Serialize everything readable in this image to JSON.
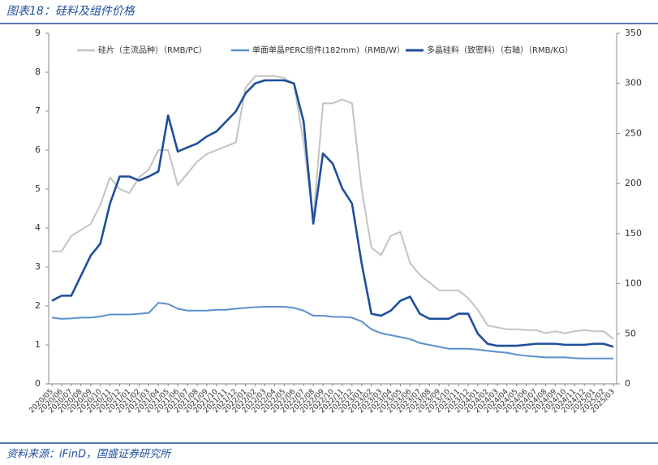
{
  "title": "图表18：硅料及组件价格",
  "source": "资料来源：iFinD，国盛证券研究所",
  "chart_data": {
    "type": "line",
    "categories": [
      "2020/05",
      "2020/06",
      "2020/07",
      "2020/08",
      "2020/09",
      "2020/10",
      "2020/11",
      "2020/12",
      "2021/01",
      "2021/02",
      "2021/03",
      "2021/04",
      "2021/05",
      "2021/06",
      "2021/07",
      "2021/08",
      "2021/09",
      "2021/10",
      "2021/11",
      "2021/12",
      "2022/01",
      "2022/02",
      "2022/03",
      "2022/04",
      "2022/05",
      "2022/06",
      "2022/07",
      "2022/08",
      "2022/09",
      "2022/10",
      "2022/11",
      "2022/12",
      "2023/01",
      "2023/02",
      "2023/03",
      "2023/04",
      "2023/05",
      "2023/06",
      "2023/07",
      "2023/08",
      "2023/09",
      "2023/10",
      "2023/11",
      "2023/12",
      "2024/01",
      "2024/02",
      "2024/03",
      "2024/04",
      "2024/05",
      "2024/06",
      "2024/07",
      "2024/08",
      "2024/09",
      "2024/10",
      "2024/11",
      "2024/12",
      "2025/01",
      "2025/02",
      "2025/03"
    ],
    "series": [
      {
        "name": "硅片（主流品种）（RMB/PC）",
        "color": "#c3c3c3",
        "width": 2,
        "values": [
          3.4,
          3.4,
          3.8,
          3.95,
          4.1,
          4.6,
          5.3,
          5.0,
          4.9,
          5.3,
          5.5,
          6.0,
          6.0,
          5.1,
          5.4,
          5.7,
          5.9,
          6.0,
          6.1,
          6.2,
          7.6,
          7.9,
          7.9,
          7.9,
          7.85,
          7.7,
          6.2,
          4.2,
          7.2,
          7.2,
          7.3,
          7.2,
          5.0,
          3.5,
          3.3,
          3.8,
          3.9,
          3.1,
          2.8,
          2.6,
          2.4,
          2.4,
          2.4,
          2.2,
          1.9,
          1.5,
          1.45,
          1.4,
          1.4,
          1.38,
          1.38,
          1.3,
          1.35,
          1.3,
          1.35,
          1.38,
          1.35,
          1.35,
          1.15
        ]
      },
      {
        "name": "单面单晶PERC组件(182mm)（RMB/W）",
        "color": "#5b8fd0",
        "width": 2,
        "values": [
          1.7,
          1.67,
          1.68,
          1.7,
          1.7,
          1.73,
          1.78,
          1.78,
          1.78,
          1.8,
          1.82,
          2.08,
          2.05,
          1.93,
          1.88,
          1.88,
          1.88,
          1.9,
          1.9,
          1.93,
          1.95,
          1.97,
          1.98,
          1.98,
          1.98,
          1.95,
          1.88,
          1.75,
          1.75,
          1.72,
          1.72,
          1.7,
          1.6,
          1.4,
          1.3,
          1.25,
          1.2,
          1.15,
          1.05,
          1.0,
          0.95,
          0.9,
          0.9,
          0.9,
          0.88,
          0.85,
          0.82,
          0.8,
          0.75,
          0.72,
          0.7,
          0.68,
          0.68,
          0.68,
          0.66,
          0.65,
          0.65,
          0.65,
          0.65
        ]
      },
      {
        "name": "多晶硅料（致密料）（右轴）（RMB/KG）",
        "color": "#1f4e9c",
        "width": 2.6,
        "axis": "y2",
        "values": [
          83,
          88,
          88,
          108,
          128,
          140,
          180,
          207,
          207,
          203,
          207,
          212,
          268,
          232,
          236,
          240,
          247,
          252,
          262,
          272,
          290,
          300,
          303,
          303,
          303,
          300,
          262,
          160,
          230,
          220,
          195,
          180,
          120,
          70,
          68,
          73,
          83,
          87,
          70,
          65,
          65,
          65,
          70,
          70,
          50,
          40,
          38,
          38,
          38,
          39,
          40,
          40,
          40,
          39,
          39,
          39,
          40,
          40,
          37
        ]
      }
    ],
    "ylim": [
      0,
      9
    ],
    "yticks": [
      0,
      1,
      2,
      3,
      4,
      5,
      6,
      7,
      8,
      9
    ],
    "y2lim": [
      0,
      350
    ],
    "y2ticks": [
      0,
      50,
      100,
      150,
      200,
      250,
      300,
      350
    ]
  }
}
